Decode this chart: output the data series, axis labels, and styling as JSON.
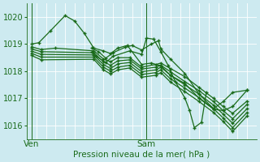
{
  "xlabel": "Pression niveau de la mer( hPa )",
  "bg_color": "#cdeaf0",
  "line_color": "#1a6b1a",
  "ylim": [
    1015.5,
    1020.5
  ],
  "xlim": [
    0,
    48
  ],
  "yticks": [
    1016,
    1017,
    1018,
    1019,
    1020
  ],
  "xtick_positions": [
    1,
    25
  ],
  "xtick_labels": [
    "Ven",
    "Sam"
  ],
  "vline_ven": 1,
  "vline_sam": 25,
  "series": [
    [
      1,
      1019.0,
      2.5,
      1019.05,
      5,
      1019.5,
      8,
      1020.05,
      10,
      1019.85,
      12,
      1019.4,
      14,
      1018.85,
      16,
      1018.75,
      17.5,
      1018.65,
      19,
      1018.85,
      21,
      1018.95,
      24,
      1018.25,
      26,
      1018.3,
      28,
      1018.2,
      30,
      1017.85,
      33,
      1017.55,
      36,
      1017.0,
      39,
      1016.6,
      41,
      1016.55,
      43,
      1016.7,
      46,
      1017.3
    ],
    [
      1,
      1018.9,
      3,
      1018.8,
      6,
      1018.85,
      14,
      1018.75,
      16,
      1018.45,
      17.5,
      1018.35,
      19,
      1018.5,
      21.5,
      1018.5,
      24,
      1018.15,
      27,
      1018.25,
      28,
      1018.3,
      30,
      1018.1,
      33,
      1017.8,
      36,
      1017.4,
      39,
      1017.0,
      41,
      1016.7,
      43,
      1016.45,
      46,
      1016.9
    ],
    [
      1,
      1018.82,
      3,
      1018.72,
      14,
      1018.68,
      16,
      1018.35,
      17.5,
      1018.22,
      19,
      1018.38,
      21.5,
      1018.42,
      24,
      1018.08,
      27,
      1018.15,
      28,
      1018.22,
      30,
      1017.98,
      33,
      1017.62,
      36,
      1017.28,
      39,
      1016.88,
      41,
      1016.55,
      43,
      1016.25,
      46,
      1016.78
    ],
    [
      1,
      1018.74,
      3,
      1018.62,
      14,
      1018.6,
      16,
      1018.25,
      17.5,
      1018.1,
      19,
      1018.27,
      21.5,
      1018.32,
      24,
      1017.98,
      27,
      1018.05,
      28,
      1018.15,
      30,
      1017.85,
      33,
      1017.5,
      36,
      1017.15,
      39,
      1016.75,
      41,
      1016.42,
      43,
      1016.08,
      46,
      1016.62
    ],
    [
      1,
      1018.66,
      3,
      1018.52,
      14,
      1018.52,
      16,
      1018.15,
      17.5,
      1018.0,
      19,
      1018.15,
      21.5,
      1018.22,
      24,
      1017.88,
      27,
      1017.95,
      28,
      1018.05,
      30,
      1017.72,
      33,
      1017.38,
      36,
      1017.02,
      39,
      1016.62,
      41,
      1016.28,
      43,
      1015.92,
      46,
      1016.48
    ],
    [
      1,
      1018.58,
      3,
      1018.42,
      14,
      1018.44,
      16,
      1018.05,
      17.5,
      1017.9,
      19,
      1018.05,
      21.5,
      1018.12,
      24,
      1017.78,
      27,
      1017.85,
      28,
      1017.95,
      30,
      1017.6,
      33,
      1017.25,
      36,
      1016.88,
      39,
      1016.48,
      41,
      1016.15,
      43,
      1015.78,
      46,
      1016.35
    ],
    [
      13.5,
      1018.85,
      15,
      1018.72,
      16.5,
      1018.48,
      18,
      1018.68,
      20.5,
      1018.88,
      22,
      1018.95,
      24,
      1018.78,
      26,
      1019.0,
      27.5,
      1019.12,
      28,
      1018.82,
      30,
      1018.45,
      33,
      1017.92,
      36,
      1017.15,
      39,
      1016.62,
      41,
      1016.88,
      43,
      1017.22,
      46,
      1017.3
    ],
    [
      13.5,
      1018.7,
      14.5,
      1018.55,
      16.5,
      1018.32,
      18,
      1018.55,
      21.5,
      1018.75,
      24,
      1018.62,
      25,
      1019.22,
      26.5,
      1019.18,
      28,
      1018.72,
      29.5,
      1018.22,
      31,
      1017.62,
      33,
      1017.02,
      34,
      1016.55,
      35,
      1015.92,
      36.5,
      1016.12,
      37.5,
      1017.22
    ]
  ]
}
